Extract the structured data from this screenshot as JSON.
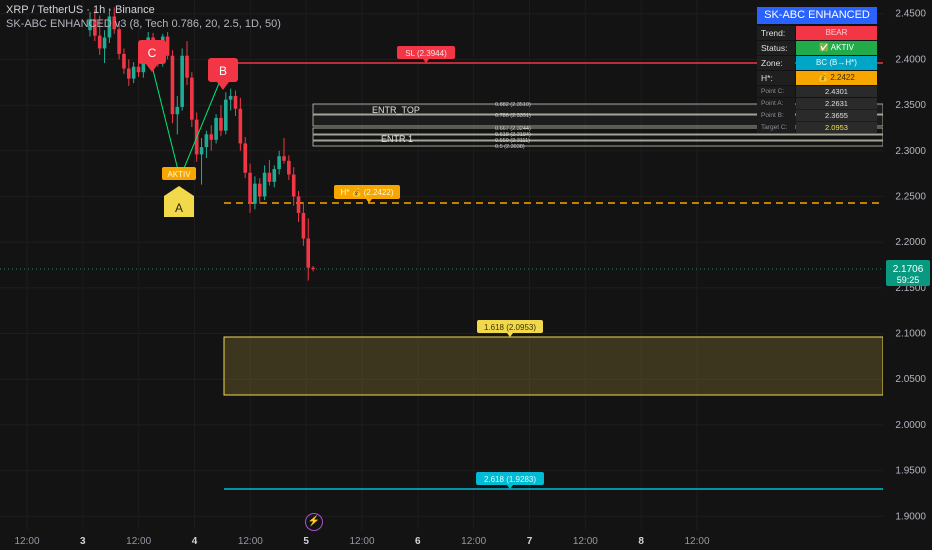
{
  "header": {
    "title": "XRP / TetherUS · 1h · Binance",
    "indicator": "SK-ABC ENHANCED v3 (8, Tech 0.786, 20, 2.5, 1D, 50)"
  },
  "panel": {
    "title": "SK-ABC ENHANCED",
    "rows": [
      {
        "k": "Trend:",
        "v": "BEAR"
      },
      {
        "k": "Status:",
        "v": "✅ AKTIV"
      },
      {
        "k": "Zone:",
        "v": "BC (B→H*)"
      },
      {
        "k": "H*:",
        "v": "💰 2.2422"
      }
    ],
    "points": [
      {
        "k": "Point C:",
        "v": "2.4301"
      },
      {
        "k": "Point A:",
        "v": "2.2631"
      },
      {
        "k": "Point B:",
        "v": "2.3655"
      },
      {
        "k": "Target C:",
        "v": "2.0953"
      }
    ]
  },
  "price_axis": {
    "ticks": [
      "2.4500",
      "2.4000",
      "2.3500",
      "2.3000",
      "2.2500",
      "2.2000",
      "2.1500",
      "2.1000",
      "2.0500",
      "2.0000",
      "1.9500",
      "1.9000"
    ],
    "current_price": "2.1706",
    "countdown": "59:25"
  },
  "time_axis": {
    "labels": [
      "12:00",
      "3",
      "12:00",
      "4",
      "12:00",
      "5",
      "12:00",
      "6",
      "12:00",
      "7",
      "12:00",
      "8",
      "12:00"
    ]
  },
  "labels": {
    "sl": "SL (2.3944)",
    "entr_top": "ENTR_TOP",
    "entr_1": "ENTR 1",
    "hstar": "H* 💰 (2.2422)",
    "target_1618": "1.618 (2.0953)",
    "target_2618": "2.618 (1.9283)",
    "aktiv": "AKTIV",
    "point_a": "A",
    "point_b": "B",
    "point_c": "C",
    "fib_882": "0.882 (2.3510)",
    "fib_786": "0.786 (2.3391)",
    "fib_667": "0.667 (2.3244)",
    "fib_618": "0.618 (2.3184)",
    "fib_559": "0.559 (2.3111)",
    "fib_500": "0.5 (2.3038)"
  },
  "colors": {
    "bull": "#22ab94",
    "bear": "#f23645",
    "sl": "#f23645",
    "hstar": "#f7a600",
    "target": "#f2d94c",
    "target2": "#00bcd4",
    "panel_title": "#2962ff"
  },
  "chart_data": {
    "type": "candlestick",
    "price_range": [
      1.885,
      2.465
    ],
    "candles": [
      {
        "o": 2.432,
        "h": 2.452,
        "l": 2.425,
        "c": 2.444
      },
      {
        "o": 2.444,
        "h": 2.455,
        "l": 2.42,
        "c": 2.426
      },
      {
        "o": 2.426,
        "h": 2.448,
        "l": 2.405,
        "c": 2.412
      },
      {
        "o": 2.412,
        "h": 2.432,
        "l": 2.396,
        "c": 2.424
      },
      {
        "o": 2.424,
        "h": 2.456,
        "l": 2.418,
        "c": 2.447
      },
      {
        "o": 2.447,
        "h": 2.457,
        "l": 2.428,
        "c": 2.433
      },
      {
        "o": 2.433,
        "h": 2.441,
        "l": 2.4,
        "c": 2.406
      },
      {
        "o": 2.406,
        "h": 2.412,
        "l": 2.384,
        "c": 2.39
      },
      {
        "o": 2.39,
        "h": 2.4,
        "l": 2.371,
        "c": 2.379
      },
      {
        "o": 2.379,
        "h": 2.397,
        "l": 2.374,
        "c": 2.392
      },
      {
        "o": 2.392,
        "h": 2.406,
        "l": 2.381,
        "c": 2.386
      },
      {
        "o": 2.386,
        "h": 2.418,
        "l": 2.38,
        "c": 2.412
      },
      {
        "o": 2.412,
        "h": 2.43,
        "l": 2.406,
        "c": 2.424
      },
      {
        "o": 2.424,
        "h": 2.429,
        "l": 2.402,
        "c": 2.408
      },
      {
        "o": 2.408,
        "h": 2.416,
        "l": 2.392,
        "c": 2.396
      },
      {
        "o": 2.396,
        "h": 2.428,
        "l": 2.392,
        "c": 2.425
      },
      {
        "o": 2.425,
        "h": 2.43,
        "l": 2.4,
        "c": 2.404
      },
      {
        "o": 2.404,
        "h": 2.41,
        "l": 2.33,
        "c": 2.34
      },
      {
        "o": 2.34,
        "h": 2.36,
        "l": 2.318,
        "c": 2.348
      },
      {
        "o": 2.348,
        "h": 2.412,
        "l": 2.344,
        "c": 2.404
      },
      {
        "o": 2.404,
        "h": 2.42,
        "l": 2.372,
        "c": 2.38
      },
      {
        "o": 2.38,
        "h": 2.386,
        "l": 2.326,
        "c": 2.334
      },
      {
        "o": 2.334,
        "h": 2.342,
        "l": 2.288,
        "c": 2.296
      },
      {
        "o": 2.296,
        "h": 2.314,
        "l": 2.263,
        "c": 2.304
      },
      {
        "o": 2.304,
        "h": 2.322,
        "l": 2.292,
        "c": 2.318
      },
      {
        "o": 2.318,
        "h": 2.328,
        "l": 2.3,
        "c": 2.312
      },
      {
        "o": 2.312,
        "h": 2.34,
        "l": 2.308,
        "c": 2.336
      },
      {
        "o": 2.336,
        "h": 2.35,
        "l": 2.316,
        "c": 2.322
      },
      {
        "o": 2.322,
        "h": 2.364,
        "l": 2.318,
        "c": 2.356
      },
      {
        "o": 2.356,
        "h": 2.368,
        "l": 2.344,
        "c": 2.36
      },
      {
        "o": 2.36,
        "h": 2.366,
        "l": 2.338,
        "c": 2.346
      },
      {
        "o": 2.346,
        "h": 2.358,
        "l": 2.3,
        "c": 2.308
      },
      {
        "o": 2.308,
        "h": 2.315,
        "l": 2.27,
        "c": 2.276
      },
      {
        "o": 2.276,
        "h": 2.286,
        "l": 2.232,
        "c": 2.242
      },
      {
        "o": 2.242,
        "h": 2.272,
        "l": 2.236,
        "c": 2.264
      },
      {
        "o": 2.264,
        "h": 2.27,
        "l": 2.242,
        "c": 2.25
      },
      {
        "o": 2.25,
        "h": 2.284,
        "l": 2.246,
        "c": 2.276
      },
      {
        "o": 2.276,
        "h": 2.29,
        "l": 2.262,
        "c": 2.266
      },
      {
        "o": 2.266,
        "h": 2.284,
        "l": 2.26,
        "c": 2.28
      },
      {
        "o": 2.28,
        "h": 2.3,
        "l": 2.274,
        "c": 2.294
      },
      {
        "o": 2.294,
        "h": 2.314,
        "l": 2.286,
        "c": 2.289
      },
      {
        "o": 2.289,
        "h": 2.295,
        "l": 2.268,
        "c": 2.274
      },
      {
        "o": 2.274,
        "h": 2.282,
        "l": 2.24,
        "c": 2.25
      },
      {
        "o": 2.25,
        "h": 2.256,
        "l": 2.222,
        "c": 2.232
      },
      {
        "o": 2.232,
        "h": 2.244,
        "l": 2.196,
        "c": 2.204
      },
      {
        "o": 2.204,
        "h": 2.226,
        "l": 2.158,
        "c": 2.172
      },
      {
        "o": 2.172,
        "h": 2.174,
        "l": 2.168,
        "c": 2.1706
      }
    ]
  }
}
